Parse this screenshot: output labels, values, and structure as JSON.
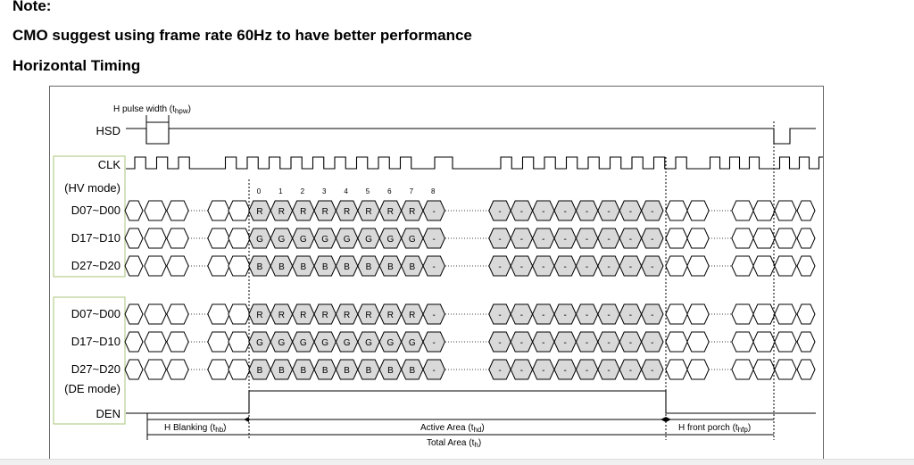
{
  "header": {
    "note": "Note:",
    "suggestion": "CMO suggest using frame rate 60Hz to have better performance",
    "section": "Horizontal Timing"
  },
  "diagram": {
    "pulse_label": "H pulse width (t",
    "pulse_sub": "hpw",
    "signals": {
      "hsd": "HSD",
      "clk": "CLK",
      "hv_mode": "(HV mode)",
      "d0": "D07~D00",
      "d1": "D17~D10",
      "d2": "D27~D20",
      "de_mode": "(DE mode)",
      "den": "DEN"
    },
    "indices": [
      "0",
      "1",
      "2",
      "3",
      "4",
      "5",
      "6",
      "7",
      "8"
    ],
    "cell_letters": {
      "r": "R",
      "g": "G",
      "b": "B",
      "dash": "-"
    },
    "spans": {
      "hblank": "H Blanking (t",
      "hblank_sub": "hb",
      "active": "Active Area (t",
      "active_sub": "hd",
      "front": "H front porch (t",
      "front_sub": "hfp",
      "total": "Total Area (t",
      "total_sub": "h"
    }
  }
}
